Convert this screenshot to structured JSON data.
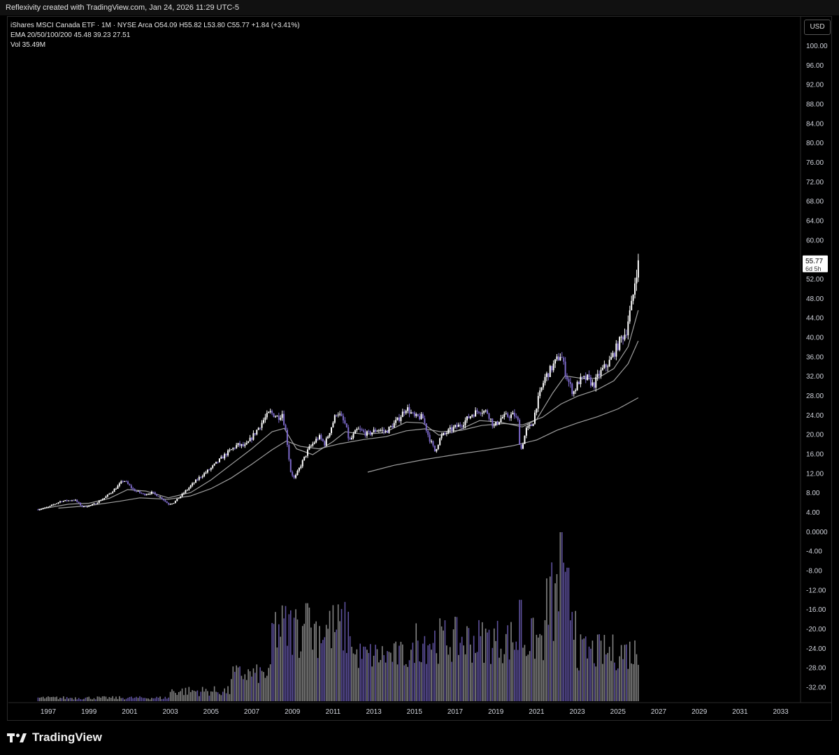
{
  "header": {
    "caption": "Reflexivity created with TradingView.com, Jan 24, 2026 11:29 UTC-5"
  },
  "legend": {
    "line1": "iShares MSCI Canada ETF · 1M · NYSE Arca  O54.09  H55.82  L53.80  C55.77  +1.84 (+3.41%)",
    "line2": "EMA 20/50/100/200  45.48  39.23  27.51",
    "line3": "Vol  35.49M"
  },
  "currency_button": "USD",
  "price_tag": {
    "price": "55.77",
    "countdown": "6d 5h"
  },
  "footer": {
    "brand": "TradingView"
  },
  "colors": {
    "background": "#000000",
    "candle_up": "#ffffff",
    "candle_down": "#7b68c8",
    "ema": "#b0b0b0",
    "volume_up": "#9a9a9a",
    "volume_down": "#6f5fb8"
  },
  "chart_data": {
    "type": "candlestick",
    "symbol": "iShares MSCI Canada ETF",
    "interval": "1M",
    "exchange": "NYSE Arca",
    "y_ticks": [
      "100.00",
      "96.00",
      "92.00",
      "88.00",
      "84.00",
      "80.00",
      "76.00",
      "72.00",
      "68.00",
      "64.00",
      "60.00",
      "56.00",
      "52.00",
      "48.00",
      "44.00",
      "40.00",
      "36.00",
      "32.00",
      "28.00",
      "24.00",
      "20.00",
      "16.00",
      "12.00",
      "8.00",
      "4.00",
      "0.0000",
      "-4.00",
      "-8.00",
      "-12.00",
      "-16.00",
      "-20.00",
      "-24.00",
      "-28.00",
      "-32.00"
    ],
    "x_ticks": [
      "1997",
      "1999",
      "2001",
      "2003",
      "2005",
      "2007",
      "2009",
      "2011",
      "2013",
      "2015",
      "2017",
      "2019",
      "2021",
      "2023",
      "2025",
      "2027",
      "2029",
      "2031",
      "2033"
    ],
    "x_range": [
      1996.2,
      2034.0
    ],
    "ylim": [
      -34,
      102
    ],
    "price_path": [
      [
        1996.5,
        4.5
      ],
      [
        1997.0,
        5.0
      ],
      [
        1997.6,
        6.2
      ],
      [
        1998.3,
        6.5
      ],
      [
        1998.7,
        5.0
      ],
      [
        1999.2,
        5.5
      ],
      [
        1999.8,
        7.0
      ],
      [
        2000.4,
        9.2
      ],
      [
        2000.7,
        10.6
      ],
      [
        2001.2,
        8.5
      ],
      [
        2001.7,
        7.6
      ],
      [
        2002.1,
        8.0
      ],
      [
        2002.6,
        6.8
      ],
      [
        2002.9,
        5.6
      ],
      [
        2003.2,
        6.0
      ],
      [
        2003.8,
        8.5
      ],
      [
        2004.4,
        11.0
      ],
      [
        2005.0,
        13.0
      ],
      [
        2005.7,
        15.8
      ],
      [
        2006.3,
        17.8
      ],
      [
        2006.7,
        17.5
      ],
      [
        2007.2,
        20.5
      ],
      [
        2007.6,
        23.0
      ],
      [
        2007.9,
        24.5
      ],
      [
        2008.3,
        23.5
      ],
      [
        2008.5,
        24.3
      ],
      [
        2008.7,
        20.0
      ],
      [
        2008.9,
        12.5
      ],
      [
        2009.1,
        10.8
      ],
      [
        2009.4,
        13.5
      ],
      [
        2009.8,
        17.0
      ],
      [
        2010.3,
        19.5
      ],
      [
        2010.6,
        18.0
      ],
      [
        2011.0,
        22.5
      ],
      [
        2011.2,
        24.8
      ],
      [
        2011.6,
        22.0
      ],
      [
        2011.8,
        18.5
      ],
      [
        2012.2,
        21.0
      ],
      [
        2012.7,
        20.0
      ],
      [
        2013.2,
        21.0
      ],
      [
        2013.6,
        20.5
      ],
      [
        2014.2,
        23.0
      ],
      [
        2014.6,
        25.5
      ],
      [
        2015.0,
        23.5
      ],
      [
        2015.4,
        23.5
      ],
      [
        2015.7,
        19.5
      ],
      [
        2016.0,
        16.5
      ],
      [
        2016.3,
        19.5
      ],
      [
        2016.8,
        21.0
      ],
      [
        2017.3,
        22.0
      ],
      [
        2017.8,
        24.0
      ],
      [
        2018.2,
        25.0
      ],
      [
        2018.6,
        24.5
      ],
      [
        2018.9,
        21.5
      ],
      [
        2019.3,
        23.5
      ],
      [
        2019.9,
        24.0
      ],
      [
        2020.1,
        22.5
      ],
      [
        2020.2,
        16.2
      ],
      [
        2020.5,
        21.0
      ],
      [
        2020.8,
        22.0
      ],
      [
        2021.0,
        26.0
      ],
      [
        2021.4,
        31.5
      ],
      [
        2021.8,
        34.0
      ],
      [
        2022.2,
        36.5
      ],
      [
        2022.4,
        33.0
      ],
      [
        2022.6,
        30.5
      ],
      [
        2022.8,
        28.5
      ],
      [
        2023.1,
        31.0
      ],
      [
        2023.5,
        31.5
      ],
      [
        2023.8,
        30.0
      ],
      [
        2024.1,
        32.5
      ],
      [
        2024.6,
        35.0
      ],
      [
        2024.9,
        37.5
      ],
      [
        2025.2,
        40.0
      ],
      [
        2025.4,
        41.0
      ],
      [
        2025.5,
        43.5
      ],
      [
        2025.7,
        47.0
      ],
      [
        2025.85,
        52.0
      ],
      [
        2026.0,
        55.8
      ]
    ],
    "ema_20": [
      [
        1996.5,
        4.5
      ],
      [
        1998.0,
        5.6
      ],
      [
        1999.0,
        5.8
      ],
      [
        2000.0,
        6.8
      ],
      [
        2000.9,
        8.6
      ],
      [
        2001.8,
        8.3
      ],
      [
        2002.9,
        6.9
      ],
      [
        2004.0,
        8.0
      ],
      [
        2005.0,
        10.6
      ],
      [
        2006.0,
        13.8
      ],
      [
        2007.0,
        17.0
      ],
      [
        2008.0,
        20.5
      ],
      [
        2008.6,
        21.2
      ],
      [
        2009.2,
        17.0
      ],
      [
        2010.0,
        15.8
      ],
      [
        2011.0,
        18.5
      ],
      [
        2011.6,
        20.5
      ],
      [
        2012.5,
        20.0
      ],
      [
        2013.5,
        20.3
      ],
      [
        2014.6,
        22.5
      ],
      [
        2015.4,
        22.3
      ],
      [
        2016.2,
        19.8
      ],
      [
        2017.0,
        20.5
      ],
      [
        2018.2,
        22.8
      ],
      [
        2019.2,
        22.5
      ],
      [
        2020.3,
        21.5
      ],
      [
        2021.0,
        23.0
      ],
      [
        2021.8,
        28.5
      ],
      [
        2022.4,
        32.0
      ],
      [
        2023.2,
        31.5
      ],
      [
        2024.0,
        31.5
      ],
      [
        2024.8,
        33.5
      ],
      [
        2025.5,
        38.0
      ],
      [
        2026.0,
        45.5
      ]
    ],
    "ema_50": [
      [
        1997.5,
        4.8
      ],
      [
        1999.0,
        5.3
      ],
      [
        2000.5,
        6.2
      ],
      [
        2001.5,
        6.9
      ],
      [
        2002.9,
        6.6
      ],
      [
        2004.0,
        7.3
      ],
      [
        2005.0,
        8.8
      ],
      [
        2006.0,
        11.0
      ],
      [
        2007.0,
        13.8
      ],
      [
        2008.0,
        16.8
      ],
      [
        2008.7,
        18.6
      ],
      [
        2009.4,
        17.5
      ],
      [
        2010.3,
        17.0
      ],
      [
        2011.3,
        18.0
      ],
      [
        2012.5,
        18.9
      ],
      [
        2013.6,
        19.5
      ],
      [
        2014.6,
        20.7
      ],
      [
        2015.5,
        21.1
      ],
      [
        2016.3,
        20.5
      ],
      [
        2017.3,
        20.8
      ],
      [
        2018.3,
        21.8
      ],
      [
        2019.4,
        22.2
      ],
      [
        2020.3,
        21.9
      ],
      [
        2021.3,
        23.5
      ],
      [
        2022.2,
        26.2
      ],
      [
        2023.0,
        27.8
      ],
      [
        2024.0,
        29.2
      ],
      [
        2024.8,
        31.0
      ],
      [
        2025.5,
        34.5
      ],
      [
        2026.0,
        39.2
      ]
    ],
    "ema_200": [
      [
        2012.7,
        12.2
      ],
      [
        2014.0,
        13.6
      ],
      [
        2015.5,
        14.8
      ],
      [
        2017.0,
        15.8
      ],
      [
        2018.5,
        16.7
      ],
      [
        2019.8,
        17.6
      ],
      [
        2021.0,
        18.8
      ],
      [
        2022.0,
        20.8
      ],
      [
        2023.0,
        22.3
      ],
      [
        2024.0,
        23.6
      ],
      [
        2025.0,
        25.2
      ],
      [
        2026.0,
        27.5
      ]
    ],
    "volume_pattern": "volume histogram plotted in the lower pane, peak near 2022",
    "last_close": 55.77
  }
}
